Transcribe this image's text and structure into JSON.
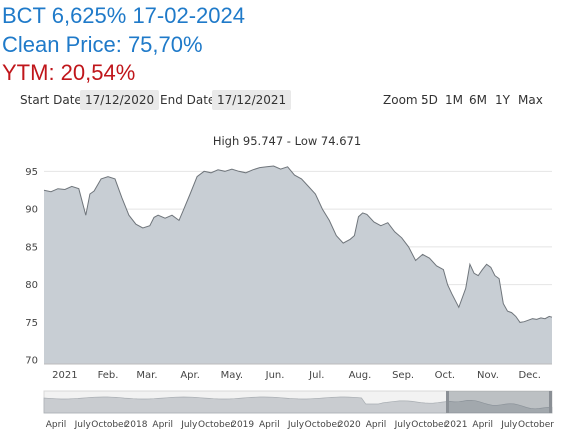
{
  "header": {
    "line1": "BCT 6,625% 17-02-2024",
    "line2": "Clean Price: 75,70%",
    "line3": "YTM: 20,54%"
  },
  "controls": {
    "start_label": "Start Date",
    "start_value": "17/12/2020",
    "end_label": "End Date",
    "end_value": "17/12/2021",
    "zoom_label": "Zoom :",
    "zoom_options": [
      "5D",
      "1M",
      "6M",
      "1Y",
      "Max"
    ],
    "zoom_active": "1Y"
  },
  "colors": {
    "header_blue": "#1f7ac9",
    "header_red": "#c0161b",
    "area_fill": "#c8ced4",
    "line": "#6f757b",
    "zoom_active": "#d4145a",
    "grid": "#e4e4e4"
  },
  "chart_data": {
    "type": "area",
    "title": "High 95.747 - Low 74.671",
    "xlabel": "",
    "ylabel": "",
    "ylim": [
      69.5,
      96.5
    ],
    "yticks": [
      70,
      75,
      80,
      85,
      90,
      95
    ],
    "xticks": [
      {
        "label": "2021",
        "x": "2021-01-01"
      },
      {
        "label": "Feb.",
        "x": "2021-02-01"
      },
      {
        "label": "Mar.",
        "x": "2021-03-01"
      },
      {
        "label": "Apr.",
        "x": "2021-04-01"
      },
      {
        "label": "May.",
        "x": "2021-05-01"
      },
      {
        "label": "Jun.",
        "x": "2021-06-01"
      },
      {
        "label": "Jul.",
        "x": "2021-07-01"
      },
      {
        "label": "Aug.",
        "x": "2021-08-01"
      },
      {
        "label": "Sep.",
        "x": "2021-09-01"
      },
      {
        "label": "Oct.",
        "x": "2021-10-01"
      },
      {
        "label": "Nov.",
        "x": "2021-11-01"
      },
      {
        "label": "Dec.",
        "x": "2021-12-01"
      }
    ],
    "grid": true,
    "legend": "none",
    "series": [
      {
        "x": [
          "2020-12-17",
          "2020-12-22",
          "2020-12-27",
          "2021-01-01",
          "2021-01-06",
          "2021-01-11",
          "2021-01-16",
          "2021-01-19",
          "2021-01-22",
          "2021-01-27",
          "2021-02-01",
          "2021-02-06",
          "2021-02-11",
          "2021-02-16",
          "2021-02-21",
          "2021-02-26",
          "2021-03-03",
          "2021-03-06",
          "2021-03-09",
          "2021-03-14",
          "2021-03-19",
          "2021-03-24",
          "2021-03-27",
          "2021-04-01",
          "2021-04-06",
          "2021-04-11",
          "2021-04-16",
          "2021-04-21",
          "2021-04-26",
          "2021-05-01",
          "2021-05-06",
          "2021-05-11",
          "2021-05-16",
          "2021-05-21",
          "2021-05-26",
          "2021-05-31",
          "2021-06-05",
          "2021-06-10",
          "2021-06-15",
          "2021-06-20",
          "2021-06-25",
          "2021-06-30",
          "2021-07-05",
          "2021-07-10",
          "2021-07-15",
          "2021-07-20",
          "2021-07-25",
          "2021-07-28",
          "2021-07-31",
          "2021-08-03",
          "2021-08-06",
          "2021-08-11",
          "2021-08-16",
          "2021-08-21",
          "2021-08-26",
          "2021-08-31",
          "2021-09-05",
          "2021-09-10",
          "2021-09-15",
          "2021-09-20",
          "2021-09-25",
          "2021-09-30",
          "2021-10-03",
          "2021-10-06",
          "2021-10-11",
          "2021-10-16",
          "2021-10-19",
          "2021-10-22",
          "2021-10-25",
          "2021-10-28",
          "2021-10-31",
          "2021-11-03",
          "2021-11-06",
          "2021-11-09",
          "2021-11-12",
          "2021-11-15",
          "2021-11-18",
          "2021-11-21",
          "2021-11-24",
          "2021-11-27",
          "2021-11-30",
          "2021-12-03",
          "2021-12-06",
          "2021-12-09",
          "2021-12-12",
          "2021-12-15",
          "2021-12-17"
        ],
        "values": [
          92.5,
          92.3,
          92.7,
          92.6,
          93.0,
          92.7,
          89.2,
          92.0,
          92.4,
          94.0,
          94.3,
          94.0,
          91.5,
          89.2,
          88.0,
          87.5,
          87.8,
          88.9,
          89.2,
          88.8,
          89.2,
          88.5,
          89.8,
          92.0,
          94.3,
          95.0,
          94.8,
          95.2,
          95.0,
          95.3,
          95.0,
          94.8,
          95.2,
          95.5,
          95.6,
          95.7,
          95.3,
          95.6,
          94.5,
          94.0,
          93.0,
          92.0,
          90.0,
          88.5,
          86.5,
          85.5,
          86.0,
          86.5,
          89.0,
          89.5,
          89.3,
          88.3,
          87.8,
          88.2,
          87.0,
          86.2,
          85.0,
          83.2,
          84.0,
          83.5,
          82.5,
          82.0,
          80.0,
          78.8,
          77.0,
          79.5,
          82.7,
          81.5,
          81.2,
          82.0,
          82.7,
          82.3,
          81.2,
          80.8,
          77.5,
          76.5,
          76.3,
          75.8,
          75.0,
          75.1,
          75.3,
          75.5,
          75.4,
          75.6,
          75.5,
          75.8,
          75.7
        ]
      }
    ]
  },
  "navigator": {
    "labels": [
      "April",
      "July",
      "October",
      "2018",
      "April",
      "July",
      "October",
      "2019",
      "April",
      "July",
      "October",
      "2020",
      "April",
      "July",
      "October",
      "2021",
      "April",
      "July",
      "October"
    ]
  }
}
